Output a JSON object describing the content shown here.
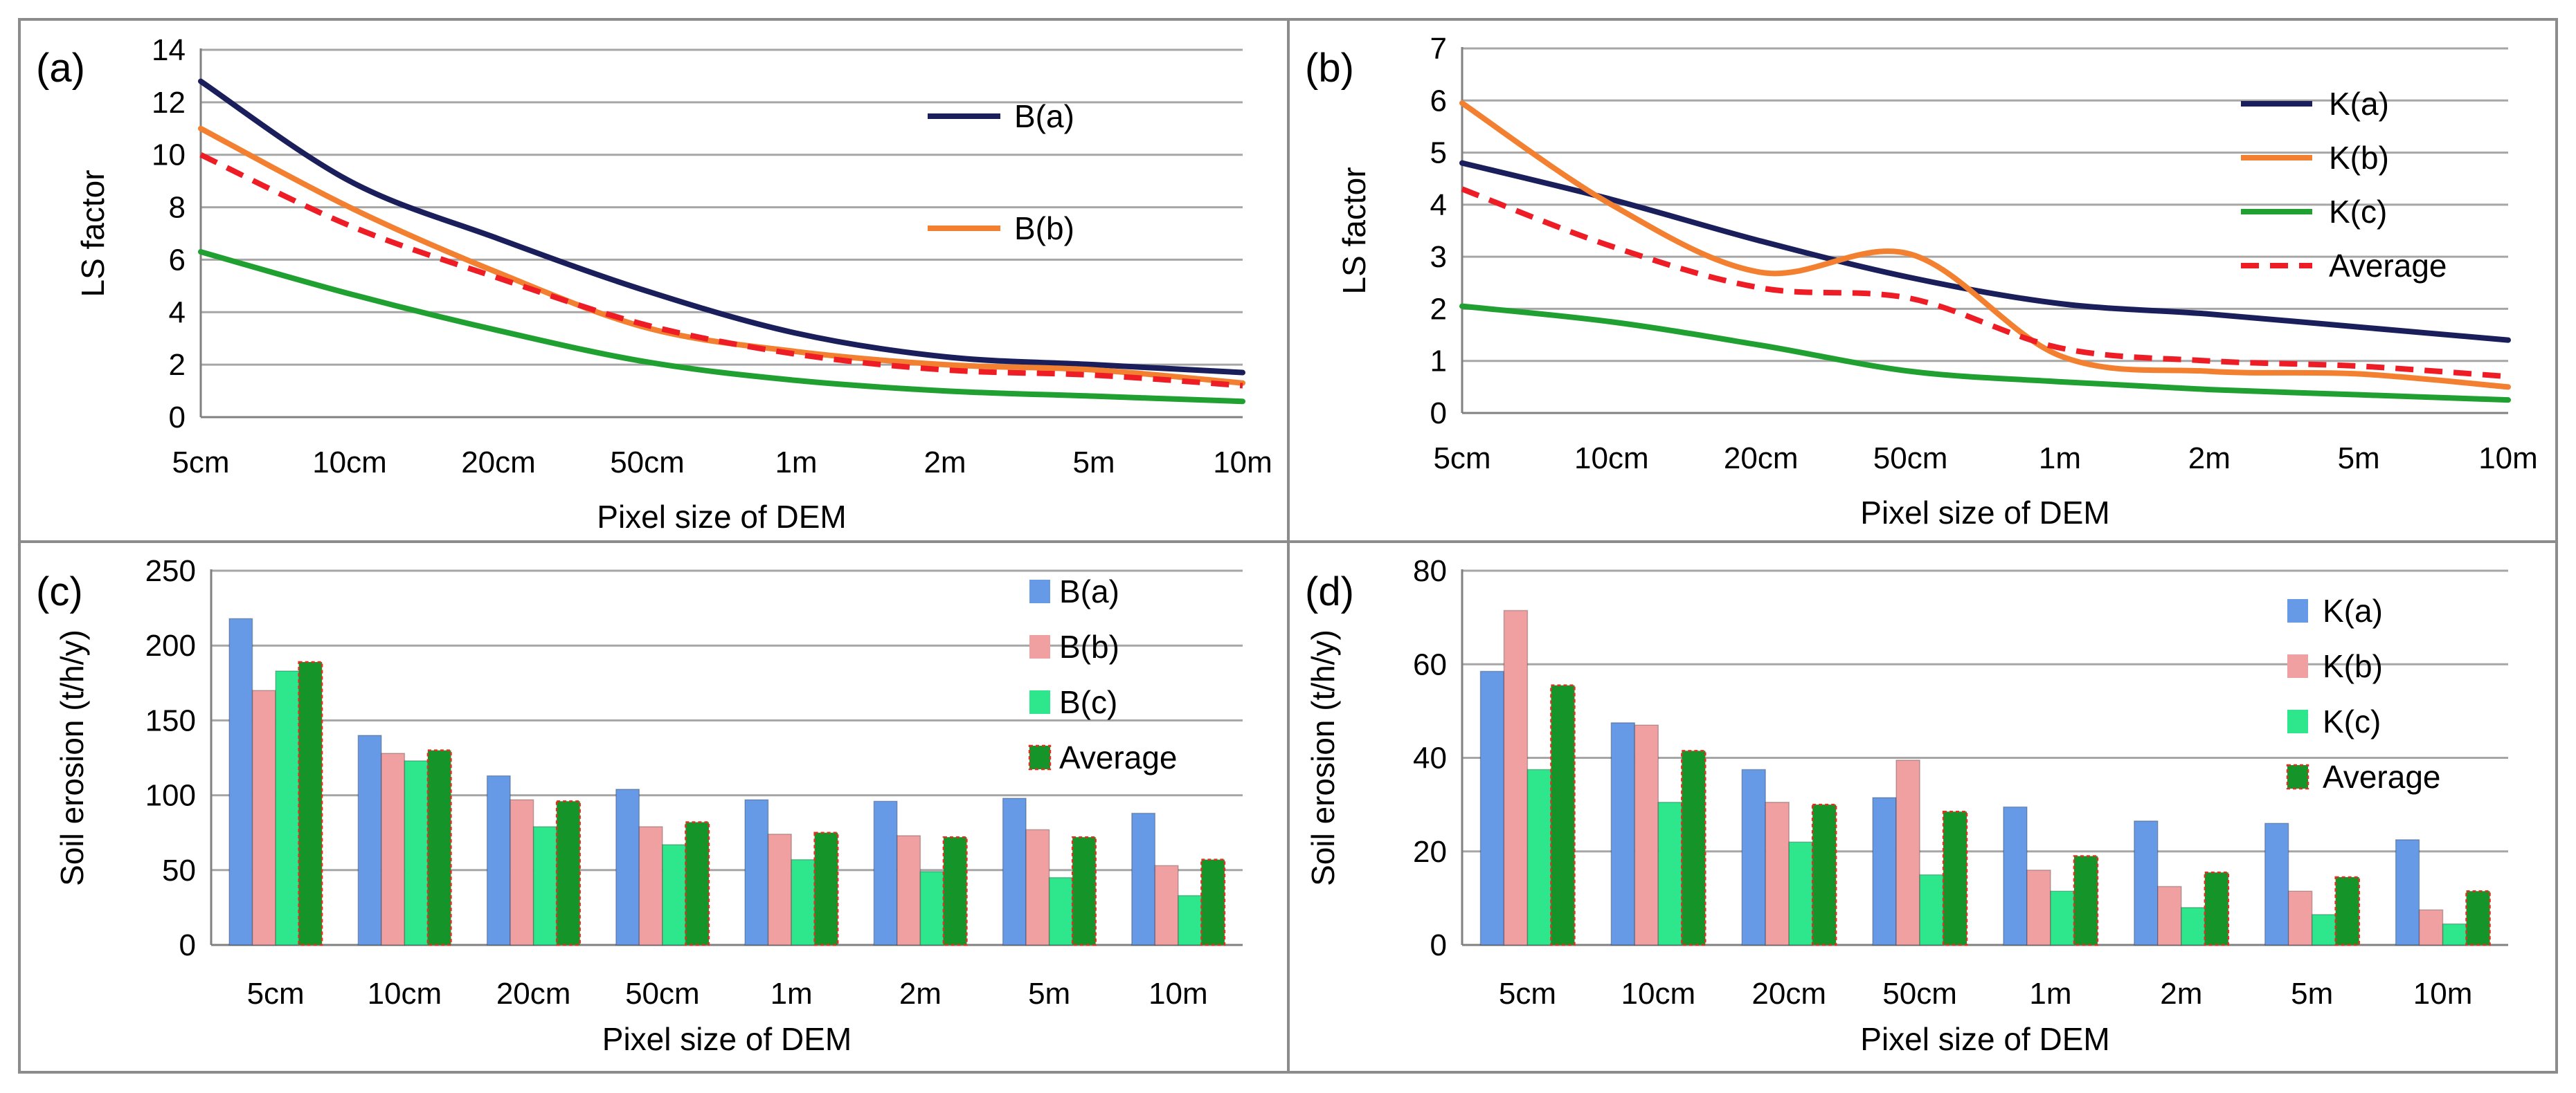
{
  "colors": {
    "B(a)": "#1a1f5c",
    "B(b)": "#f28030",
    "B(c)": "#20a030",
    "K(a)": "#1a1f5c",
    "K(b)": "#f28030",
    "K(c)": "#20a030",
    "Average": "#ee1c25",
    "bar_a": "#6699e6",
    "bar_b": "#f0a0a0",
    "bar_c": "#2ee68c",
    "bar_avg": "#15942a",
    "bar_avg_border": "#e03020",
    "grid": "#a6a6a6",
    "frame": "#8c8c8c"
  },
  "chart_data": [
    {
      "panel": "(a)",
      "type": "line",
      "ylabel": "LS  factor",
      "xlabel": "Pixel size of DEM",
      "categories": [
        "5cm",
        "10cm",
        "20cm",
        "50cm",
        "1m",
        "2m",
        "5m",
        "10m"
      ],
      "ylim": [
        0,
        14
      ],
      "yticks": [
        0,
        2,
        4,
        6,
        8,
        10,
        12,
        14
      ],
      "grid": true,
      "legend_position": "top-right",
      "legend": [
        "B(a)",
        "B(b)"
      ],
      "series": [
        {
          "name": "B(a)",
          "style": "solid",
          "values": [
            12.8,
            9.0,
            6.8,
            4.8,
            3.2,
            2.3,
            2.0,
            1.7
          ]
        },
        {
          "name": "B(b)",
          "style": "solid",
          "values": [
            11.0,
            8.0,
            5.5,
            3.4,
            2.5,
            2.0,
            1.8,
            1.3
          ]
        },
        {
          "name": "B(c)",
          "style": "solid",
          "values": [
            6.3,
            4.7,
            3.3,
            2.1,
            1.4,
            1.0,
            0.8,
            0.6
          ]
        },
        {
          "name": "Average",
          "style": "dashed",
          "values": [
            10.0,
            7.3,
            5.3,
            3.5,
            2.4,
            1.8,
            1.6,
            1.2
          ]
        }
      ]
    },
    {
      "panel": "(b)",
      "type": "line",
      "ylabel": "LS  factor",
      "xlabel": "Pixel size of DEM",
      "categories": [
        "5cm",
        "10cm",
        "20cm",
        "50cm",
        "1m",
        "2m",
        "5m",
        "10m"
      ],
      "ylim": [
        0,
        7
      ],
      "yticks": [
        0,
        1,
        2,
        3,
        4,
        5,
        6,
        7
      ],
      "grid": true,
      "legend_position": "top-right",
      "legend": [
        "K(a)",
        "K(b)",
        "K(c)",
        "Average"
      ],
      "series": [
        {
          "name": "K(a)",
          "style": "solid",
          "values": [
            4.8,
            4.1,
            3.3,
            2.6,
            2.1,
            1.9,
            1.65,
            1.4
          ]
        },
        {
          "name": "K(b)",
          "style": "solid",
          "values": [
            5.95,
            4.0,
            2.7,
            3.05,
            1.1,
            0.8,
            0.75,
            0.5
          ]
        },
        {
          "name": "K(c)",
          "style": "solid",
          "values": [
            2.05,
            1.75,
            1.3,
            0.8,
            0.6,
            0.45,
            0.35,
            0.25
          ]
        },
        {
          "name": "Average",
          "style": "dashed",
          "values": [
            4.3,
            3.2,
            2.4,
            2.2,
            1.25,
            1.0,
            0.9,
            0.7
          ]
        }
      ]
    },
    {
      "panel": "(c)",
      "type": "bar",
      "ylabel": "Soil erosion (t/h/y)",
      "xlabel": "Pixel size of DEM",
      "categories": [
        "5cm",
        "10cm",
        "20cm",
        "50cm",
        "1m",
        "2m",
        "5m",
        "10m"
      ],
      "ylim": [
        0,
        250
      ],
      "yticks": [
        0,
        50,
        100,
        150,
        200,
        250
      ],
      "grid": true,
      "legend_position": "top-right",
      "series": [
        {
          "name": "B(a)",
          "values": [
            218,
            140,
            113,
            104,
            97,
            96,
            98,
            88
          ]
        },
        {
          "name": "B(b)",
          "values": [
            170,
            128,
            97,
            79,
            74,
            73,
            77,
            53
          ]
        },
        {
          "name": "B(c)",
          "values": [
            183,
            123,
            79,
            67,
            57,
            49,
            45,
            33
          ]
        },
        {
          "name": "Average",
          "values": [
            189,
            130,
            96,
            82,
            75,
            72,
            72,
            57
          ]
        }
      ]
    },
    {
      "panel": "(d)",
      "type": "bar",
      "ylabel": "Soil erosion (t/h/y)",
      "xlabel": "Pixel size of DEM",
      "categories": [
        "5cm",
        "10cm",
        "20cm",
        "50cm",
        "1m",
        "2m",
        "5m",
        "10m"
      ],
      "ylim": [
        0,
        80
      ],
      "yticks": [
        0,
        20,
        40,
        60,
        80
      ],
      "grid": true,
      "legend_position": "top-right",
      "series": [
        {
          "name": "K(a)",
          "values": [
            58.5,
            47.5,
            37.5,
            31.5,
            29.5,
            26.5,
            26,
            22.5
          ]
        },
        {
          "name": "K(b)",
          "values": [
            71.5,
            47,
            30.5,
            39.5,
            16,
            12.5,
            11.5,
            7.5
          ]
        },
        {
          "name": "K(c)",
          "values": [
            37.5,
            30.5,
            22,
            15,
            11.5,
            8,
            6.5,
            4.5
          ]
        },
        {
          "name": "Average",
          "values": [
            55.5,
            41.5,
            30,
            28.5,
            19,
            15.5,
            14.5,
            11.5
          ]
        }
      ]
    }
  ]
}
